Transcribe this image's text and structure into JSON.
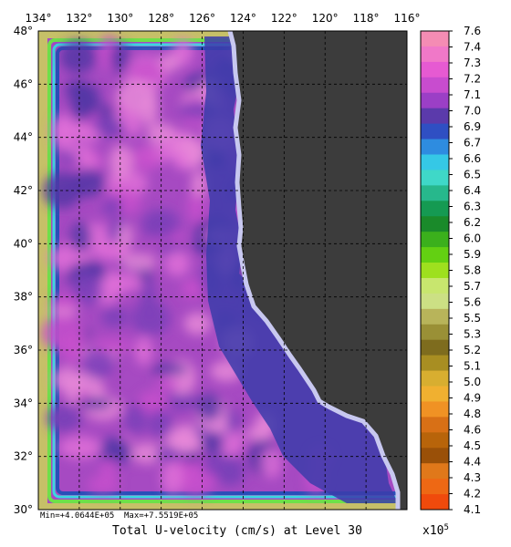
{
  "map": {
    "lon_ticks": [
      "134°",
      "132°",
      "130°",
      "128°",
      "126°",
      "124°",
      "122°",
      "120°",
      "118°",
      "116°"
    ],
    "lat_ticks": [
      "48°",
      "46°",
      "44°",
      "42°",
      "40°",
      "38°",
      "36°",
      "34°",
      "32°",
      "30°"
    ],
    "min_label": "Min=+4.0644E+05",
    "max_label": "Max=+7.5519E+05",
    "title": "Total U-velocity (cm/s) at Level 30",
    "land_color": "#3c3c3c",
    "grid_style": "dashed",
    "lon_range": [
      134,
      116
    ],
    "lat_range": [
      30,
      48
    ]
  },
  "colorbar": {
    "scale_label": "x10",
    "scale_exponent": "5",
    "labels": [
      "7.6",
      "7.4",
      "7.3",
      "7.2",
      "7.1",
      "7.0",
      "6.9",
      "6.7",
      "6.6",
      "6.5",
      "6.4",
      "6.3",
      "6.2",
      "6.0",
      "5.9",
      "5.8",
      "5.7",
      "5.6",
      "5.5",
      "5.3",
      "5.2",
      "5.1",
      "5.0",
      "4.9",
      "4.8",
      "4.6",
      "4.5",
      "4.4",
      "4.3",
      "4.2",
      "4.1"
    ],
    "colors": [
      "#f48cb4",
      "#f078c8",
      "#e65ad2",
      "#c84ccf",
      "#9b3fc6",
      "#5b3aab",
      "#2f4fc3",
      "#2e8ce0",
      "#35c8e6",
      "#3fd8c8",
      "#27b88c",
      "#159a52",
      "#1a8a2a",
      "#3bb01c",
      "#63d012",
      "#9ee01e",
      "#c8e66e",
      "#cce084",
      "#b8b45a",
      "#9a9036",
      "#7e6c1e",
      "#a88e22",
      "#d8ae30",
      "#f0b030",
      "#f09224",
      "#d87016",
      "#b8640a",
      "#9a5008",
      "#e0781a",
      "#ee6814",
      "#f04a0c"
    ]
  }
}
